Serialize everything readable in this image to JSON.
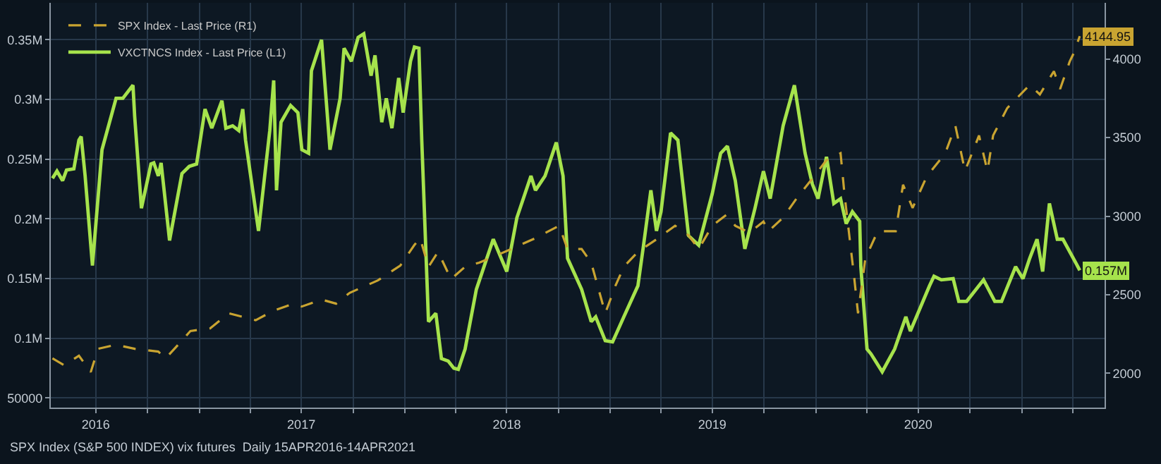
{
  "chart_data": {
    "type": "line",
    "annotations": [
      "SPX Index (S&P 500 INDEX) vix futures  Daily 15APR2016-14APR2021"
    ],
    "series": [
      {
        "name": "SPX Index - Last Price (R1)",
        "color": "#c9a431",
        "axis": "y2",
        "line_style": "dashed",
        "x": [
          "2016-04-15",
          "2016-05-06",
          "2016-06-01",
          "2016-06-22",
          "2016-07-05",
          "2016-08-06",
          "2016-09-08",
          "2016-10-20",
          "2016-11-02",
          "2016-12-01",
          "2016-12-16",
          "2017-01-20",
          "2017-02-22",
          "2017-04-11",
          "2017-05-13",
          "2017-06-17",
          "2017-07-02",
          "2017-08-06",
          "2017-09-01",
          "2017-09-25",
          "2017-11-14",
          "2017-12-24",
          "2018-01-18",
          "2018-01-28",
          "2018-02-12",
          "2018-03-01",
          "2018-03-24",
          "2018-04-18",
          "2018-05-13",
          "2018-05-31",
          "2018-07-09",
          "2018-08-21",
          "2018-10-02",
          "2018-10-17",
          "2018-11-11",
          "2018-11-28",
          "2018-12-23",
          "2019-01-10",
          "2019-01-25",
          "2019-02-19",
          "2019-03-24",
          "2019-04-26",
          "2019-05-20",
          "2019-06-07",
          "2019-07-01",
          "2019-07-26",
          "2019-08-11",
          "2019-09-05",
          "2019-09-30",
          "2019-10-09",
          "2019-11-04",
          "2019-11-28",
          "2019-12-26",
          "2020-01-20",
          "2020-02-14",
          "2020-02-21",
          "2020-03-09",
          "2020-03-16",
          "2020-03-29",
          "2020-04-20",
          "2020-05-22",
          "2020-06-04",
          "2020-06-21",
          "2020-07-16",
          "2020-08-18",
          "2020-09-05",
          "2020-09-22",
          "2020-10-17",
          "2020-11-01",
          "2020-11-11",
          "2020-12-06",
          "2021-01-15",
          "2021-02-02",
          "2021-02-27",
          "2021-03-10",
          "2021-03-27",
          "2021-04-03",
          "2021-04-14"
        ],
        "values": [
          2095,
          2051,
          2112,
          2008,
          2156,
          2182,
          2156,
          2138,
          2095,
          2208,
          2269,
          2286,
          2382,
          2338,
          2399,
          2443,
          2425,
          2469,
          2443,
          2512,
          2591,
          2686,
          2817,
          2860,
          2678,
          2773,
          2599,
          2678,
          2704,
          2730,
          2791,
          2860,
          2939,
          2791,
          2791,
          2704,
          2382,
          2556,
          2678,
          2773,
          2852,
          2939,
          2878,
          2791,
          2939,
          3008,
          2939,
          2895,
          2965,
          2904,
          2991,
          3113,
          3240,
          3356,
          3400,
          3139,
          2617,
          2382,
          2730,
          2904,
          2904,
          3200,
          3052,
          3252,
          3400,
          3574,
          3287,
          3513,
          3287,
          3513,
          3687,
          3835,
          3774,
          3922,
          3809,
          3983,
          4035,
          4144.95
        ],
        "value_labels": [
          null,
          null,
          null,
          null,
          null,
          null,
          null,
          null,
          null,
          null,
          null,
          null,
          null,
          null,
          null,
          null,
          null,
          null,
          null,
          null,
          null,
          null,
          null,
          null,
          null,
          null,
          null,
          null,
          null,
          null,
          null,
          null,
          null,
          null,
          null,
          null,
          null,
          null,
          null,
          null,
          null,
          null,
          null,
          null,
          null,
          null,
          null,
          null,
          null,
          null,
          null,
          null,
          null,
          null,
          null,
          null,
          null,
          null,
          null,
          null,
          null,
          null,
          null,
          null,
          null,
          null,
          null,
          null,
          null,
          null,
          null,
          null,
          null,
          null,
          null,
          null,
          null,
          "4144.95"
        ]
      },
      {
        "name": "VXCTNCS Index - Last Price (L1)",
        "color": "#a6e34c",
        "line_style": "solid",
        "x": [
          "2016-04-15",
          "2016-04-23",
          "2016-05-03",
          "2016-05-10",
          "2016-05-23",
          "2016-06-01",
          "2016-06-05",
          "2016-06-12",
          "2016-06-25",
          "2016-07-12",
          "2016-08-06",
          "2016-08-18",
          "2016-09-05",
          "2016-09-08",
          "2016-09-20",
          "2016-10-07",
          "2016-10-12",
          "2016-10-20",
          "2016-10-25",
          "2016-11-09",
          "2016-12-01",
          "2016-12-14",
          "2016-12-27",
          "2017-01-11",
          "2017-01-23",
          "2017-02-10",
          "2017-02-17",
          "2017-03-01",
          "2017-03-12",
          "2017-03-19",
          "2017-03-24",
          "2017-04-16",
          "2017-05-06",
          "2017-05-13",
          "2017-05-18",
          "2017-05-26",
          "2017-06-12",
          "2017-06-25",
          "2017-07-02",
          "2017-07-14",
          "2017-07-19",
          "2017-08-06",
          "2017-08-21",
          "2017-09-08",
          "2017-09-15",
          "2017-09-28",
          "2017-10-10",
          "2017-10-20",
          "2017-11-02",
          "2017-11-09",
          "2017-11-21",
          "2017-11-29",
          "2017-12-09",
          "2017-12-21",
          "2017-12-29",
          "2018-01-11",
          "2018-01-18",
          "2018-01-26",
          "2018-01-31",
          "2018-02-12",
          "2018-02-25",
          "2018-03-07",
          "2018-03-19",
          "2018-03-29",
          "2018-04-06",
          "2018-04-18",
          "2018-05-08",
          "2018-06-07",
          "2018-07-01",
          "2018-07-19",
          "2018-08-13",
          "2018-08-21",
          "2018-09-07",
          "2018-09-27",
          "2018-10-09",
          "2018-10-17",
          "2018-11-11",
          "2018-11-28",
          "2018-12-06",
          "2018-12-23",
          "2019-01-05",
          "2019-01-25",
          "2019-02-19",
          "2019-03-01",
          "2019-03-14",
          "2019-03-24",
          "2019-04-01",
          "2019-04-18",
          "2019-05-01",
          "2019-05-20",
          "2019-06-07",
          "2019-07-01",
          "2019-07-16",
          "2019-07-28",
          "2019-08-11",
          "2019-08-28",
          "2019-09-15",
          "2019-09-30",
          "2019-10-12",
          "2019-11-04",
          "2019-11-24",
          "2019-12-13",
          "2019-12-26",
          "2020-01-05",
          "2020-01-20",
          "2020-02-02",
          "2020-02-14",
          "2020-02-24",
          "2020-03-06",
          "2020-03-19",
          "2020-03-21",
          "2020-04-01",
          "2020-04-08",
          "2020-04-28",
          "2020-05-20",
          "2020-06-09",
          "2020-06-17",
          "2020-07-21",
          "2020-07-29",
          "2020-08-11",
          "2020-09-01",
          "2020-09-11",
          "2020-09-25",
          "2020-10-25",
          "2020-11-14",
          "2020-11-26",
          "2020-12-21",
          "2021-01-03",
          "2021-01-15",
          "2021-01-28",
          "2021-02-07",
          "2021-02-19",
          "2021-03-05",
          "2021-03-15",
          "2021-04-14"
        ],
        "values": [
          234000,
          240000,
          232000,
          241000,
          242000,
          266000,
          269000,
          236000,
          161000,
          258000,
          301000,
          301000,
          312000,
          286000,
          209000,
          246000,
          247000,
          236000,
          247000,
          182000,
          238000,
          244000,
          246000,
          292000,
          276000,
          299000,
          276000,
          278000,
          274000,
          292000,
          266000,
          190000,
          274000,
          316000,
          224000,
          281000,
          295000,
          289000,
          258000,
          255000,
          324000,
          350000,
          258000,
          301000,
          343000,
          332000,
          352000,
          355000,
          320000,
          337000,
          281000,
          301000,
          276000,
          318000,
          289000,
          332000,
          344000,
          343000,
          266000,
          114000,
          121000,
          83000,
          81000,
          75000,
          74000,
          91000,
          141000,
          183000,
          156000,
          201000,
          236000,
          224000,
          236000,
          264000,
          236000,
          167000,
          141000,
          114000,
          118000,
          98000,
          97000,
          118000,
          144000,
          178000,
          224000,
          190000,
          206000,
          272000,
          266000,
          186000,
          178000,
          221000,
          255000,
          261000,
          232000,
          175000,
          209000,
          240000,
          217000,
          278000,
          312000,
          255000,
          229000,
          217000,
          252000,
          213000,
          217000,
          196000,
          206000,
          198000,
          160000,
          91000,
          87000,
          72000,
          91000,
          118000,
          106000,
          144000,
          152000,
          149000,
          150000,
          131000,
          131000,
          149000,
          131000,
          131000,
          160000,
          150000,
          167000,
          183000,
          156000,
          213000,
          183000,
          183000,
          157000
        ],
        "value_labels": [
          null,
          null,
          null,
          null,
          null,
          null,
          null,
          null,
          null,
          null,
          null,
          null,
          null,
          null,
          null,
          null,
          null,
          null,
          null,
          null,
          null,
          null,
          null,
          null,
          null,
          null,
          null,
          null,
          null,
          null,
          null,
          null,
          null,
          null,
          null,
          null,
          null,
          null,
          null,
          null,
          null,
          null,
          null,
          null,
          null,
          null,
          null,
          null,
          null,
          null,
          null,
          null,
          null,
          null,
          null,
          null,
          null,
          null,
          null,
          null,
          null,
          null,
          null,
          null,
          null,
          null,
          null,
          null,
          null,
          null,
          null,
          null,
          null,
          null,
          null,
          null,
          null,
          null,
          null,
          null,
          null,
          null,
          null,
          null,
          null,
          null,
          null,
          null,
          null,
          null,
          null,
          null,
          null,
          null,
          null,
          null,
          null,
          null,
          null,
          null,
          null,
          null,
          null,
          null,
          null,
          null,
          null,
          null,
          null,
          null,
          null,
          null,
          null,
          null,
          null,
          null,
          null,
          null,
          null,
          null,
          null,
          null,
          null,
          null,
          null,
          null,
          null,
          null,
          null,
          null,
          null,
          null,
          null,
          null,
          "0.157M"
        ]
      }
    ],
    "xlim": [
      "2016-04-12",
      "2021-05-28"
    ],
    "xticks": [
      {
        "value": "2016-07-01",
        "label": "2016"
      },
      {
        "value": "2016-10-01",
        "label": null
      },
      {
        "value": "2017-01-01",
        "label": null
      },
      {
        "value": "2017-04-01",
        "label": null
      },
      {
        "value": "2017-07-01",
        "label": "2017"
      },
      {
        "value": "2017-10-01",
        "label": null
      },
      {
        "value": "2018-01-01",
        "label": null
      },
      {
        "value": "2018-04-01",
        "label": null
      },
      {
        "value": "2018-07-01",
        "label": "2018"
      },
      {
        "value": "2018-10-01",
        "label": null
      },
      {
        "value": "2019-01-01",
        "label": null
      },
      {
        "value": "2019-04-01",
        "label": null
      },
      {
        "value": "2019-07-01",
        "label": "2019"
      },
      {
        "value": "2019-10-01",
        "label": null
      },
      {
        "value": "2020-01-01",
        "label": null
      },
      {
        "value": "2020-04-01",
        "label": null
      },
      {
        "value": "2020-07-01",
        "label": "2020"
      },
      {
        "value": "2020-10-01",
        "label": null
      },
      {
        "value": "2021-01-01",
        "label": null
      },
      {
        "value": "2021-04-01",
        "label": null
      }
    ],
    "ylim": [
      42000,
      381000
    ],
    "yticks": [
      50000,
      {
        "value": 100000,
        "label": "0.1M"
      },
      {
        "value": 150000,
        "label": "0.15M"
      },
      {
        "value": 200000,
        "label": "0.2M"
      },
      {
        "value": 250000,
        "label": "0.25M"
      },
      {
        "value": 300000,
        "label": "0.3M"
      },
      {
        "value": 350000,
        "label": "0.35M"
      }
    ],
    "y2lim": [
      1782,
      4357
    ],
    "y2ticks": [
      2000,
      2500,
      3000,
      3500,
      4000
    ],
    "grid": true,
    "legend": "top left",
    "marker": "none"
  }
}
